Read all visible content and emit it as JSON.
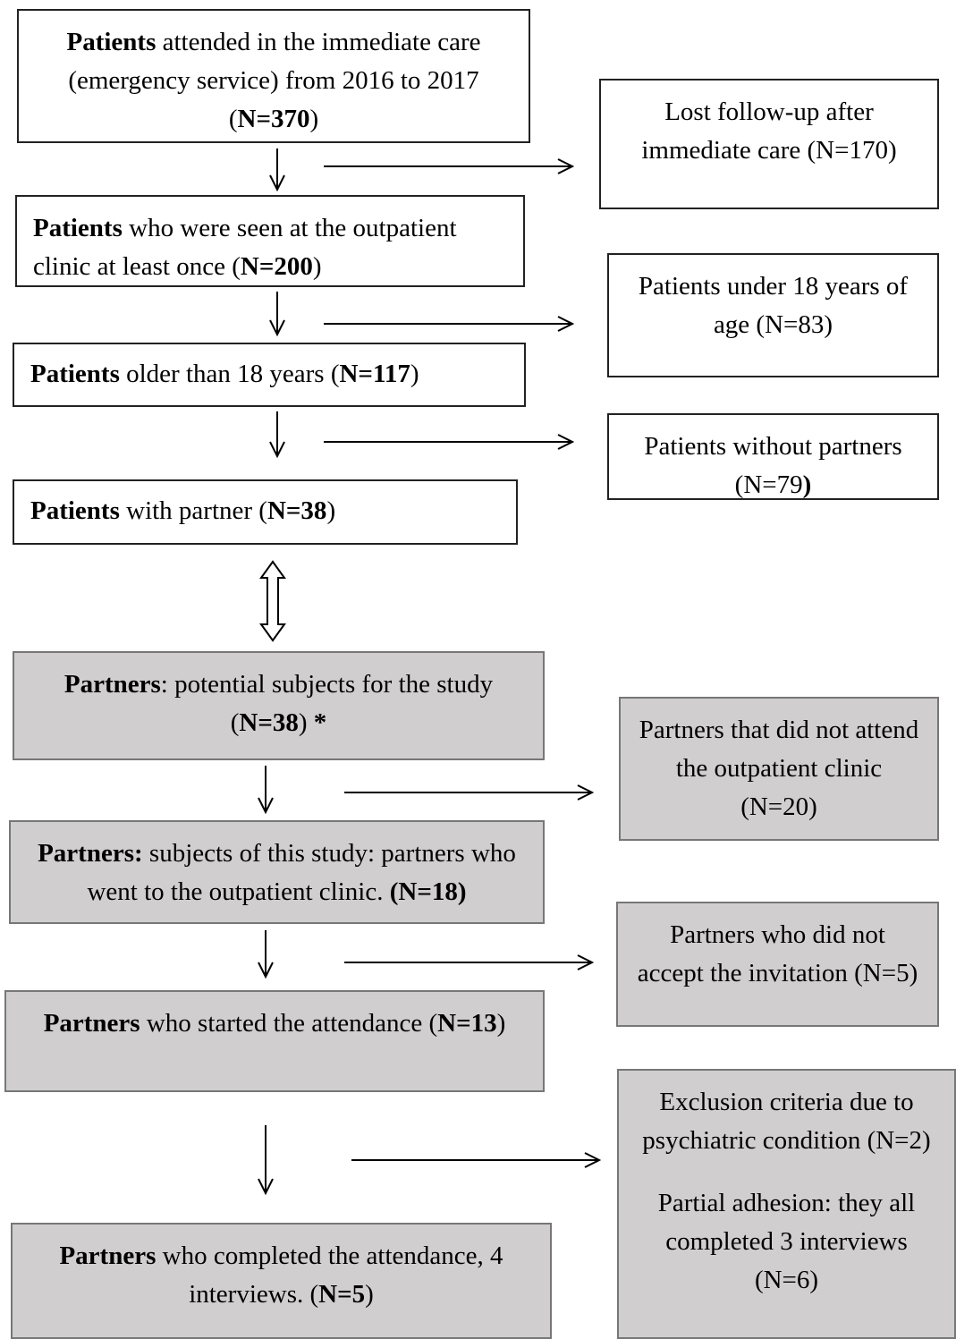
{
  "nodes": [
    {
      "paragraphs": [
        [
          {
            "text": "Patients",
            "bold": true
          },
          {
            "text": " attended in the immediate care (emergency service) from 2016 to 2017 ("
          },
          {
            "text": "N=370",
            "bold": true
          },
          {
            "text": ")"
          }
        ]
      ]
    },
    {
      "paragraphs": [
        [
          {
            "text": "Lost follow-up after immediate care (N=170)"
          }
        ]
      ]
    },
    {
      "paragraphs": [
        [
          {
            "text": "Patients",
            "bold": true
          },
          {
            "text": " who were seen at the outpatient clinic at least once ("
          },
          {
            "text": "N=200",
            "bold": true
          },
          {
            "text": ")"
          }
        ]
      ]
    },
    {
      "paragraphs": [
        [
          {
            "text": "Patients under 18 years of age (N=83)"
          }
        ]
      ]
    },
    {
      "paragraphs": [
        [
          {
            "text": "Patients",
            "bold": true
          },
          {
            "text": " older than 18 years ("
          },
          {
            "text": "N=117",
            "bold": true
          },
          {
            "text": ")"
          }
        ]
      ]
    },
    {
      "paragraphs": [
        [
          {
            "text": "Patients without partners (N=79"
          },
          {
            "text": ")",
            "bold": true
          }
        ]
      ]
    },
    {
      "paragraphs": [
        [
          {
            "text": "Patients",
            "bold": true
          },
          {
            "text": " with partner ("
          },
          {
            "text": "N=38",
            "bold": true
          },
          {
            "text": ")"
          }
        ]
      ]
    },
    {
      "paragraphs": [
        [
          {
            "text": "Partners",
            "bold": true
          },
          {
            "text": ": potential subjects for the study ("
          },
          {
            "text": "N=38",
            "bold": true
          },
          {
            "text": ") "
          },
          {
            "text": "*",
            "bold": true
          }
        ]
      ]
    },
    {
      "paragraphs": [
        [
          {
            "text": "Partners that did not attend the outpatient clinic (N=20)"
          }
        ]
      ]
    },
    {
      "paragraphs": [
        [
          {
            "text": "Partners:",
            "bold": true
          },
          {
            "text": " subjects of this study: partners who went to the outpatient clinic. "
          },
          {
            "text": "(N=18)",
            "bold": true
          }
        ]
      ]
    },
    {
      "paragraphs": [
        [
          {
            "text": "Partners who did not accept the invitation (N=5)"
          }
        ]
      ]
    },
    {
      "paragraphs": [
        [
          {
            "text": "Partners",
            "bold": true
          },
          {
            "text": " who started the attendance ("
          },
          {
            "text": "N=13",
            "bold": true
          },
          {
            "text": ")"
          }
        ]
      ]
    },
    {
      "paragraphs": [
        [
          {
            "text": "Exclusion criteria due to psychiatric condition (N=2)"
          }
        ],
        [
          {
            "text": "Partial adhesion: they all completed 3 interviews (N=6)"
          }
        ]
      ]
    },
    {
      "paragraphs": [
        [
          {
            "text": "Partners",
            "bold": true
          },
          {
            "text": " who completed the attendance, 4 interviews. ("
          },
          {
            "text": "N=5",
            "bold": true
          },
          {
            "text": ")"
          }
        ]
      ]
    }
  ]
}
